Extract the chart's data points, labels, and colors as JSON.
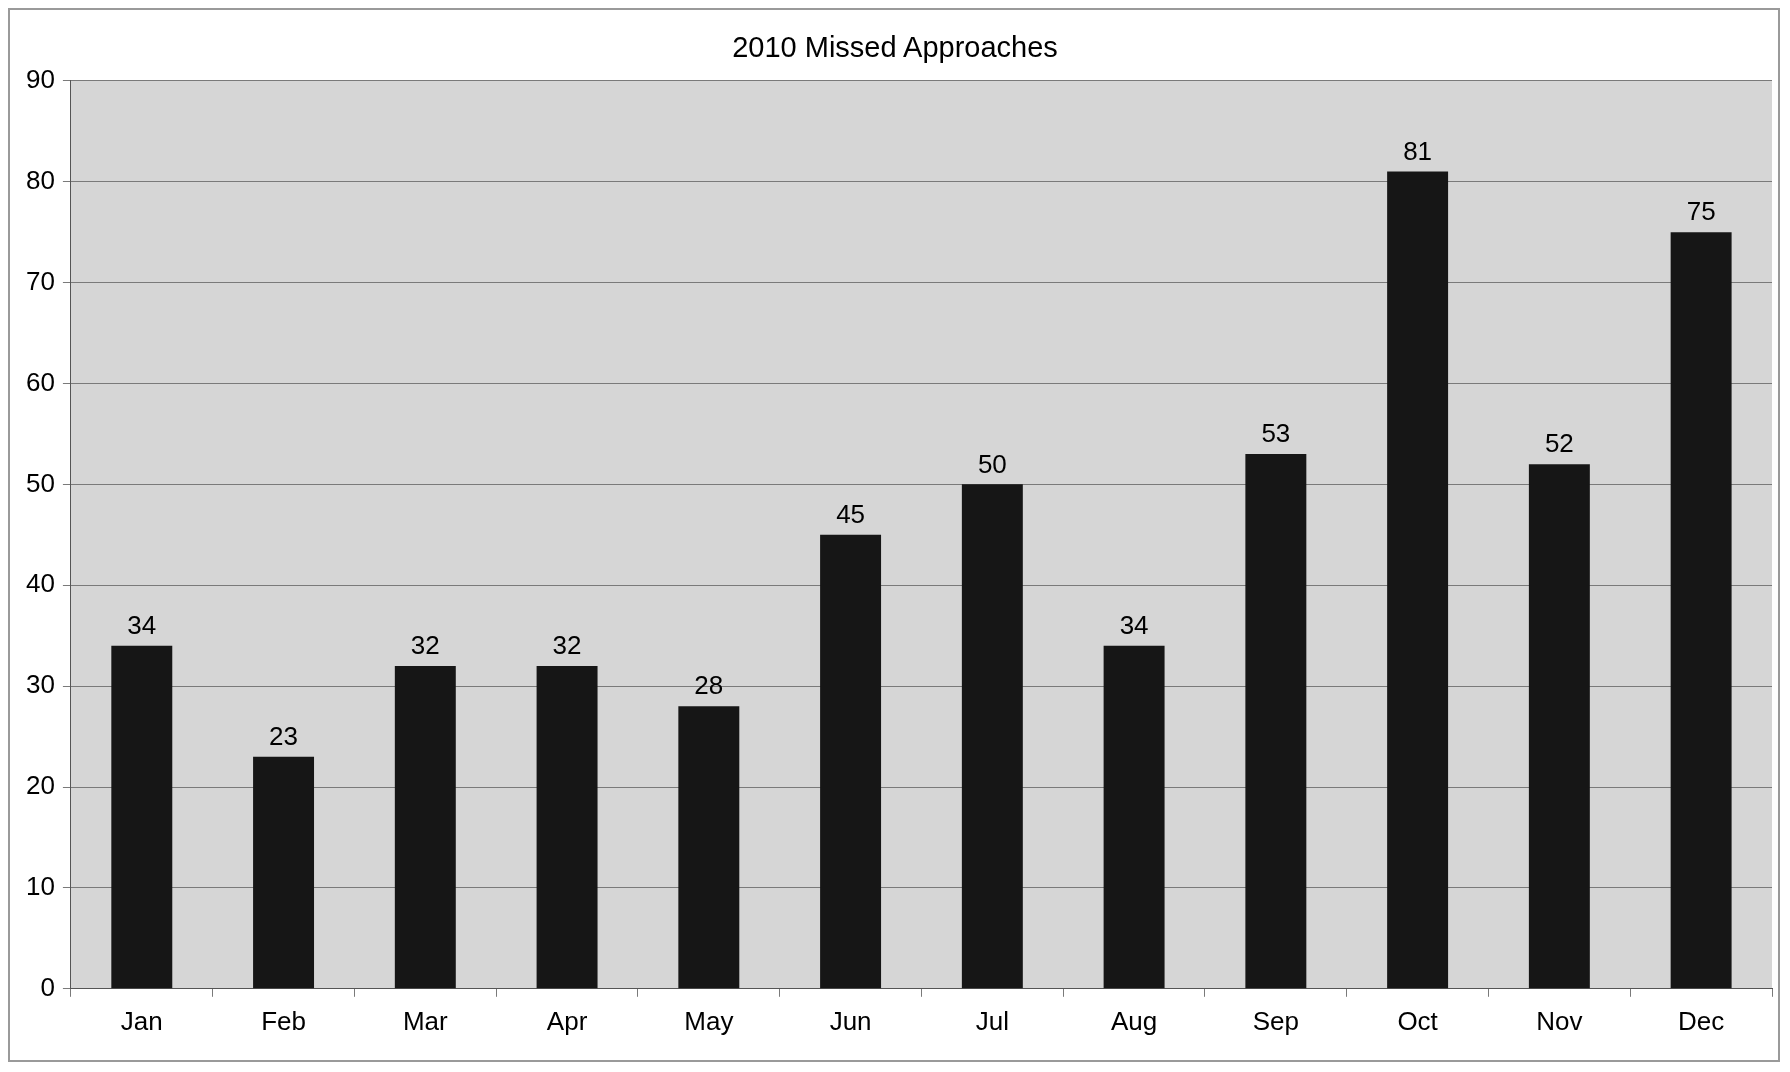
{
  "chart_data": {
    "type": "bar",
    "title": "2010 Missed Approaches",
    "categories": [
      "Jan",
      "Feb",
      "Mar",
      "Apr",
      "May",
      "Jun",
      "Jul",
      "Aug",
      "Sep",
      "Oct",
      "Nov",
      "Dec"
    ],
    "values": [
      34,
      23,
      32,
      32,
      28,
      45,
      50,
      34,
      53,
      81,
      52,
      75
    ],
    "color": "#161616",
    "ylim": [
      0,
      90
    ],
    "yticks": [
      0,
      10,
      20,
      30,
      40,
      50,
      60,
      70,
      80,
      90
    ],
    "grid": "y",
    "data_labels": true
  }
}
